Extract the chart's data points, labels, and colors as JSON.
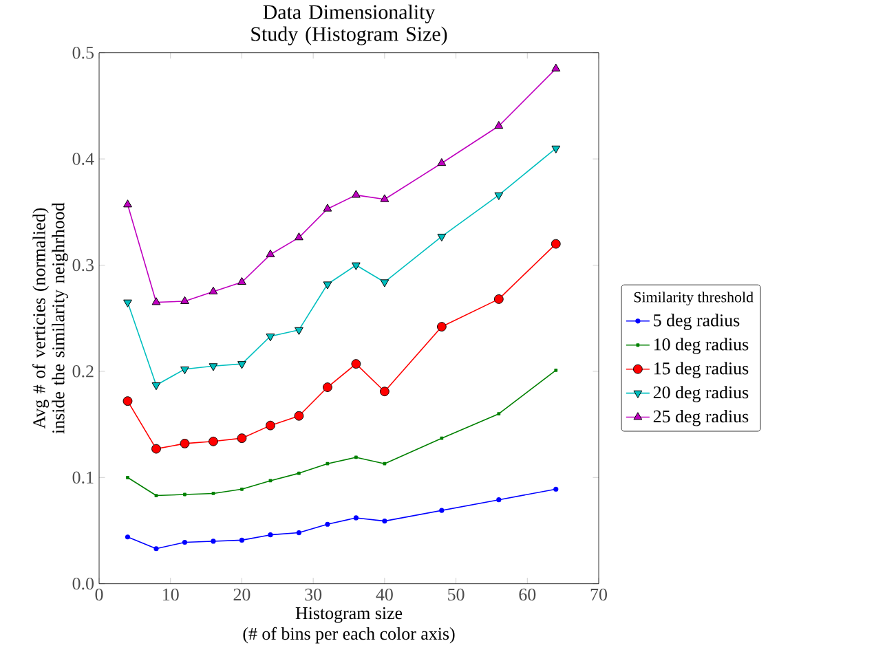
{
  "chart_data": {
    "type": "line",
    "title": "Data Dimensionality Study (Histogram Size)",
    "xlabel": "Histogram size",
    "ylabel": "Avg # of verticies (normalied) inside the similarity neighrhood",
    "annotations": [
      "(# of bins per each color axis)"
    ],
    "legend_title": "Similarity threshold",
    "legend": "right",
    "x": [
      4,
      8,
      12,
      16,
      20,
      24,
      28,
      32,
      36,
      40,
      48,
      56,
      64
    ],
    "xlim": [
      0,
      70
    ],
    "xticks": [
      0,
      10,
      20,
      30,
      40,
      50,
      60,
      70
    ],
    "ylim": [
      0,
      0.5
    ],
    "yticks": [
      {
        "value": 0,
        "label": "0.0"
      },
      0.1,
      0.2,
      0.3,
      0.4,
      0.5
    ],
    "grid": false,
    "line_style": "solid",
    "series": [
      {
        "name": "5 deg radius",
        "color": "#0000ff",
        "marker": "circle",
        "values": [
          0.044,
          0.033,
          0.039,
          0.04,
          0.041,
          0.046,
          0.048,
          0.056,
          0.062,
          0.059,
          0.069,
          0.079,
          0.089
        ]
      },
      {
        "name": "10 deg radius",
        "color": "#008000",
        "marker": "square",
        "values": [
          0.1,
          0.083,
          0.084,
          0.085,
          0.089,
          0.097,
          0.104,
          0.113,
          0.119,
          0.113,
          0.137,
          0.16,
          0.201
        ]
      },
      {
        "name": "15 deg radius",
        "color": "#ff0000",
        "marker": "circle",
        "values": [
          0.172,
          0.127,
          0.132,
          0.134,
          0.137,
          0.149,
          0.158,
          0.185,
          0.207,
          0.181,
          0.242,
          0.268,
          0.32
        ]
      },
      {
        "name": "20 deg radius",
        "color": "#00bfbf",
        "marker": "triangle",
        "values": [
          0.265,
          0.187,
          0.202,
          0.205,
          0.207,
          0.233,
          0.239,
          0.282,
          0.3,
          0.284,
          0.327,
          0.366,
          0.41
        ]
      },
      {
        "name": "25 deg radius",
        "color": "#bf00bf",
        "marker": "triangle",
        "values": [
          0.357,
          0.265,
          0.266,
          0.275,
          0.284,
          0.31,
          0.326,
          0.353,
          0.366,
          0.362,
          0.396,
          0.431,
          0.485
        ]
      }
    ]
  }
}
